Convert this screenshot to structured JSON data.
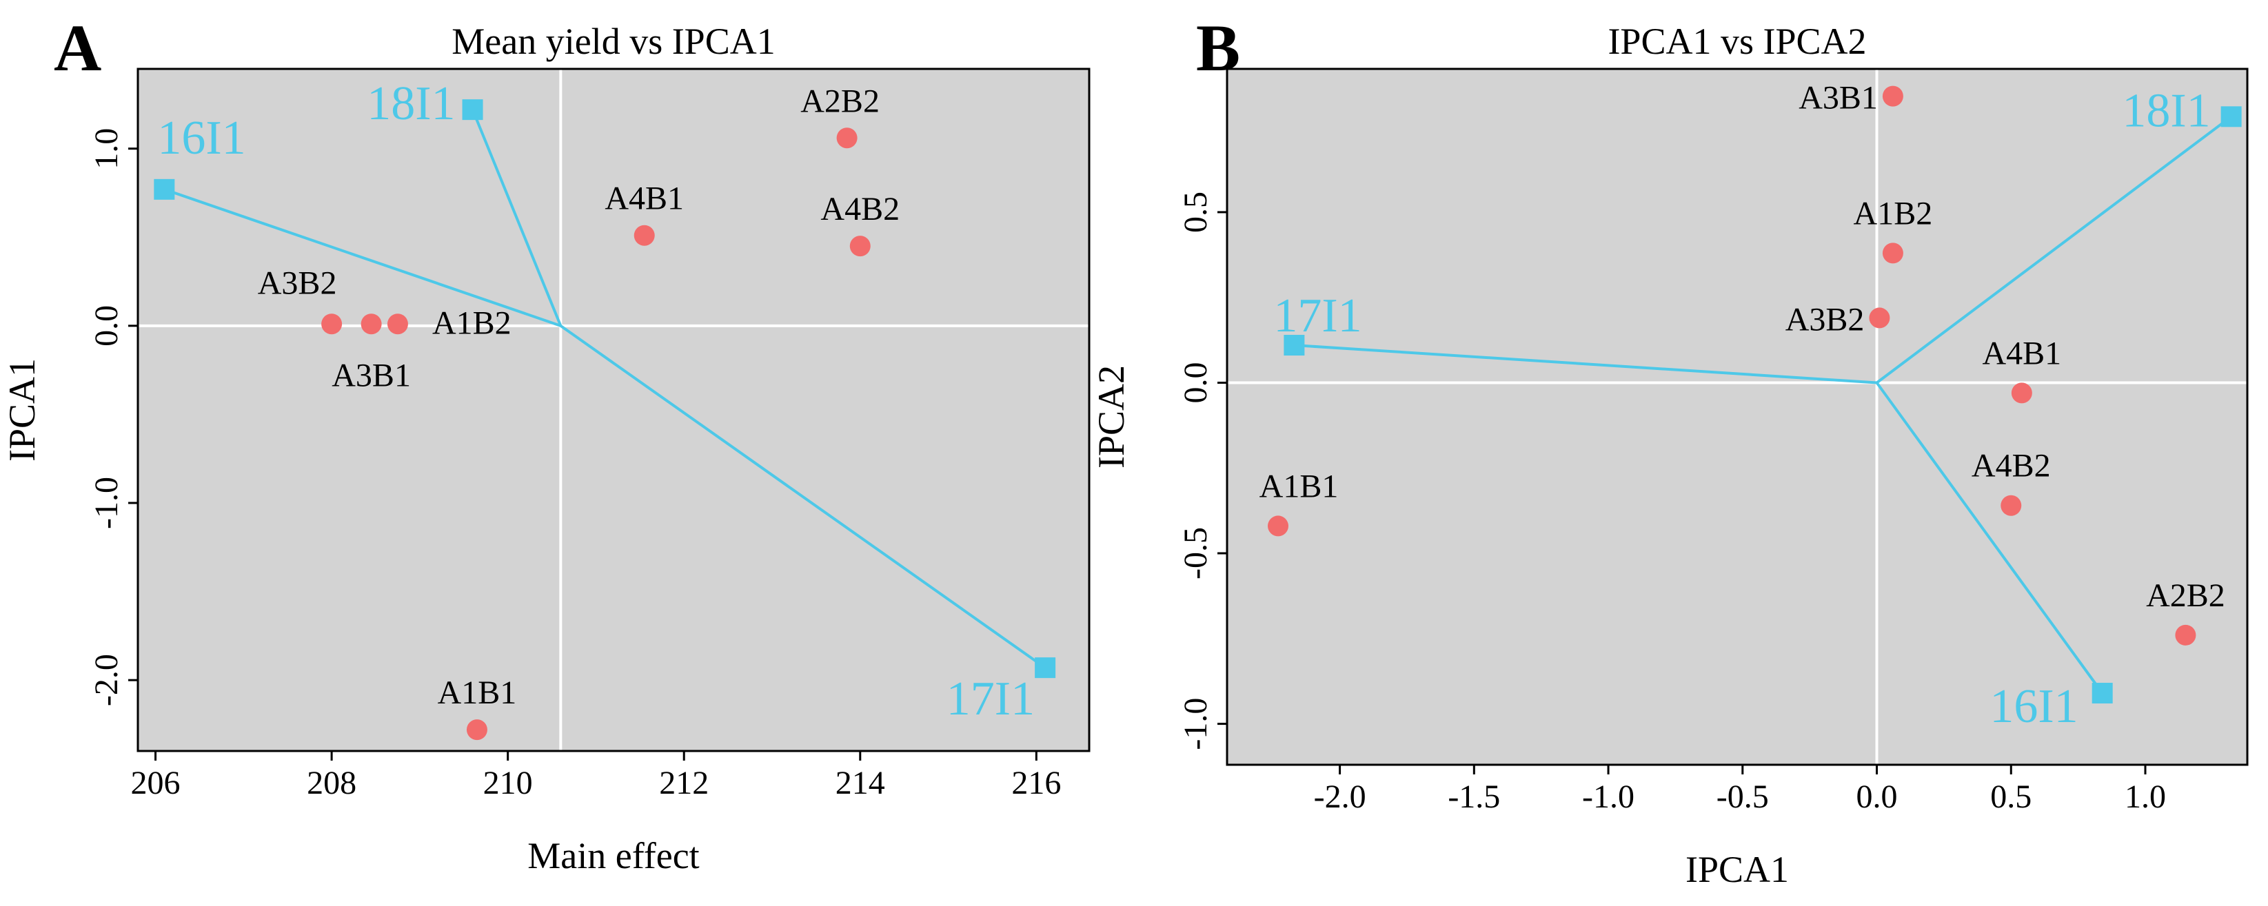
{
  "chart_data": [
    {
      "type": "scatter",
      "panel": "A",
      "title": "Mean yield vs IPCA1",
      "xlabel": "Main effect",
      "ylabel": "IPCA1",
      "xlim": [
        205.8,
        216.6
      ],
      "ylim": [
        -2.4,
        1.45
      ],
      "xticks": [
        206,
        208,
        210,
        212,
        214,
        216
      ],
      "xtick_labels": [
        "206",
        "208",
        "210",
        "212",
        "214",
        "216"
      ],
      "yticks": [
        1.0,
        0.0,
        -1.0,
        -2.0
      ],
      "ytick_labels": [
        "1.0",
        "0.0",
        "-1.0",
        "-2.0"
      ],
      "origin": [
        210.6,
        0.0
      ],
      "genotypes": [
        {
          "name": "A2B2",
          "x": 213.85,
          "y": 1.06
        },
        {
          "name": "A4B1",
          "x": 211.55,
          "y": 0.51
        },
        {
          "name": "A4B2",
          "x": 214.0,
          "y": 0.45
        },
        {
          "name": "A3B2",
          "x": 208.0,
          "y": 0.01
        },
        {
          "name": "A3B1",
          "x": 208.45,
          "y": 0.01
        },
        {
          "name": "A1B2",
          "x": 208.75,
          "y": 0.01
        },
        {
          "name": "A1B1",
          "x": 209.65,
          "y": -2.28
        }
      ],
      "environments": [
        {
          "name": "16I1",
          "x": 206.1,
          "y": 0.77
        },
        {
          "name": "18I1",
          "x": 209.6,
          "y": 1.22
        },
        {
          "name": "17I1",
          "x": 216.1,
          "y": -1.93
        }
      ]
    },
    {
      "type": "scatter",
      "panel": "B",
      "title": "IPCA1 vs IPCA2",
      "xlabel": "IPCA1",
      "ylabel": "IPCA2",
      "xlim": [
        -2.42,
        1.38
      ],
      "ylim": [
        -1.12,
        0.92
      ],
      "xticks": [
        -2.0,
        -1.5,
        -1.0,
        -0.5,
        0.0,
        0.5,
        1.0
      ],
      "xtick_labels": [
        "-2.0",
        "-1.5",
        "-1.0",
        "-0.5",
        "0.0",
        "0.5",
        "1.0"
      ],
      "yticks": [
        0.5,
        0.0,
        -0.5,
        -1.0
      ],
      "ytick_labels": [
        "0.5",
        "0.0",
        "-0.5",
        "-1.0"
      ],
      "origin": [
        0.0,
        0.0
      ],
      "genotypes": [
        {
          "name": "A3B1",
          "x": 0.06,
          "y": 0.84
        },
        {
          "name": "A1B2",
          "x": 0.06,
          "y": 0.38
        },
        {
          "name": "A3B2",
          "x": 0.01,
          "y": 0.19
        },
        {
          "name": "A4B1",
          "x": 0.54,
          "y": -0.03
        },
        {
          "name": "A4B2",
          "x": 0.5,
          "y": -0.36
        },
        {
          "name": "A1B1",
          "x": -2.23,
          "y": -0.42
        },
        {
          "name": "A2B2",
          "x": 1.15,
          "y": -0.74
        }
      ],
      "environments": [
        {
          "name": "18I1",
          "x": 1.32,
          "y": 0.78
        },
        {
          "name": "17I1",
          "x": -2.17,
          "y": 0.11
        },
        {
          "name": "16I1",
          "x": 0.84,
          "y": -0.91
        }
      ]
    }
  ],
  "colors": {
    "panel_bg": "#d3d3d3",
    "gridline": "#ffffff",
    "genotype_point": "#f26b6b",
    "environment": "#4dc8e8",
    "text": "#000000"
  }
}
